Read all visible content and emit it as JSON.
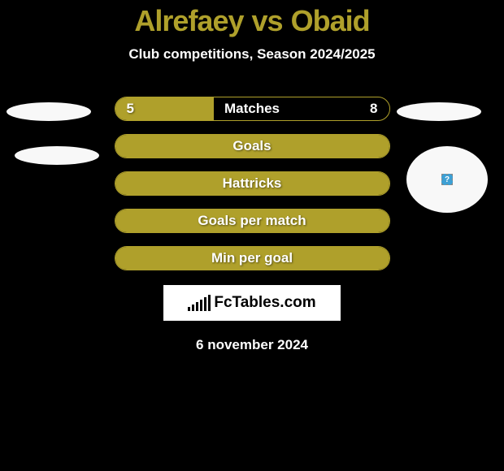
{
  "title": {
    "name1": "Alrefaey",
    "vs": "vs",
    "name2": "Obaid",
    "color": "#afa02b"
  },
  "subtitle": "Club competitions, Season 2024/2025",
  "stats": [
    {
      "label": "Matches",
      "left_value": "5",
      "right_value": "8",
      "left_fill_pct": 36,
      "right_fill_pct": 0,
      "full_fill": false
    },
    {
      "label": "Goals",
      "left_value": "",
      "right_value": "",
      "left_fill_pct": 0,
      "right_fill_pct": 0,
      "full_fill": true
    },
    {
      "label": "Hattricks",
      "left_value": "",
      "right_value": "",
      "left_fill_pct": 0,
      "right_fill_pct": 0,
      "full_fill": true
    },
    {
      "label": "Goals per match",
      "left_value": "",
      "right_value": "",
      "left_fill_pct": 0,
      "right_fill_pct": 0,
      "full_fill": true
    },
    {
      "label": "Min per goal",
      "left_value": "",
      "right_value": "",
      "left_fill_pct": 0,
      "right_fill_pct": 0,
      "full_fill": true
    }
  ],
  "logo_text": "FcTables.com",
  "date": "6 november 2024",
  "colors": {
    "background": "#000000",
    "accent": "#afa02b",
    "text": "#ffffff",
    "logo_bg": "#ffffff",
    "photo_bg": "#f8f8f8"
  },
  "logo_bars": [
    5,
    8,
    11,
    14,
    17,
    20
  ]
}
